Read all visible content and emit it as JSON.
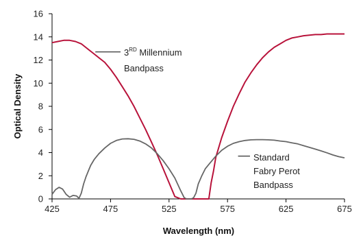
{
  "chart_data": {
    "type": "line",
    "xlabel": "Wavelength (nm)",
    "ylabel": "Optical Density",
    "xlim": [
      425,
      675
    ],
    "ylim": [
      0,
      16
    ],
    "xticks": [
      "425",
      "475",
      "525",
      "575",
      "625",
      "675"
    ],
    "yticks": [
      "0",
      "2",
      "4",
      "6",
      "8",
      "10",
      "12",
      "14",
      "16"
    ],
    "grid": false,
    "colors": {
      "millennium": "#b8123a",
      "fabry": "#666666",
      "axis": "#000000"
    },
    "series": [
      {
        "key": "millennium",
        "x": [
          425,
          430,
          435,
          440,
          445,
          450,
          455,
          460,
          465,
          470,
          475,
          480,
          485,
          490,
          495,
          500,
          505,
          510,
          515,
          520,
          525,
          530,
          535,
          538,
          541,
          543,
          545,
          547,
          549,
          551,
          553,
          555,
          557,
          559,
          561,
          563,
          565,
          570,
          575,
          580,
          585,
          590,
          595,
          600,
          605,
          610,
          615,
          620,
          625,
          630,
          635,
          640,
          645,
          650,
          655,
          660,
          665,
          670,
          675
        ],
        "y": [
          13.5,
          13.6,
          13.7,
          13.7,
          13.6,
          13.4,
          13.0,
          12.6,
          12.2,
          11.8,
          11.2,
          10.5,
          9.7,
          8.9,
          8.0,
          7.0,
          6.0,
          4.9,
          3.8,
          2.6,
          1.4,
          0.2,
          0.0,
          0.0,
          0.0,
          0.0,
          0.0,
          0.0,
          0.0,
          0.0,
          0.0,
          0.0,
          0.0,
          0.0,
          1.4,
          2.4,
          3.6,
          5.3,
          6.7,
          8.0,
          9.1,
          10.1,
          10.9,
          11.6,
          12.2,
          12.7,
          13.1,
          13.4,
          13.7,
          13.9,
          14.0,
          14.1,
          14.15,
          14.2,
          14.2,
          14.25,
          14.25,
          14.25,
          14.25
        ]
      },
      {
        "key": "fabry",
        "x": [
          425,
          428,
          431,
          434,
          437,
          440,
          443,
          446,
          448,
          450,
          452,
          454,
          456,
          458,
          461,
          465,
          470,
          475,
          480,
          485,
          490,
          495,
          500,
          505,
          510,
          515,
          520,
          525,
          530,
          535,
          538,
          540,
          542,
          544,
          546,
          548,
          550,
          553,
          556,
          560,
          565,
          570,
          575,
          580,
          585,
          590,
          595,
          600,
          605,
          610,
          615,
          620,
          625,
          630,
          635,
          640,
          645,
          650,
          655,
          660,
          665,
          670,
          675
        ],
        "y": [
          0.4,
          0.8,
          1.0,
          0.85,
          0.4,
          0.15,
          0.3,
          0.25,
          0.05,
          0.5,
          1.3,
          1.9,
          2.4,
          2.9,
          3.4,
          3.9,
          4.4,
          4.8,
          5.05,
          5.18,
          5.2,
          5.15,
          5.0,
          4.75,
          4.4,
          3.9,
          3.3,
          2.6,
          1.8,
          0.7,
          0.1,
          0.0,
          0.0,
          0.0,
          0.1,
          0.5,
          1.3,
          2.0,
          2.6,
          3.1,
          3.7,
          4.2,
          4.55,
          4.8,
          4.95,
          5.05,
          5.1,
          5.12,
          5.12,
          5.1,
          5.07,
          5.0,
          4.95,
          4.85,
          4.75,
          4.6,
          4.45,
          4.3,
          4.15,
          3.98,
          3.8,
          3.65,
          3.55
        ]
      }
    ],
    "annotations": [
      {
        "key": "millennium",
        "line1_main": "3",
        "line1_sup": "RD",
        "line1_rest": " Millennium",
        "line2": "Bandpass",
        "leader_from_x": 462,
        "leader_y": 12.7
      },
      {
        "key": "fabry",
        "line1": "Standard",
        "line2": "Fabry Perot",
        "line3": "Bandpass",
        "leader_from_x": 584,
        "leader_y": 3.7
      }
    ]
  }
}
